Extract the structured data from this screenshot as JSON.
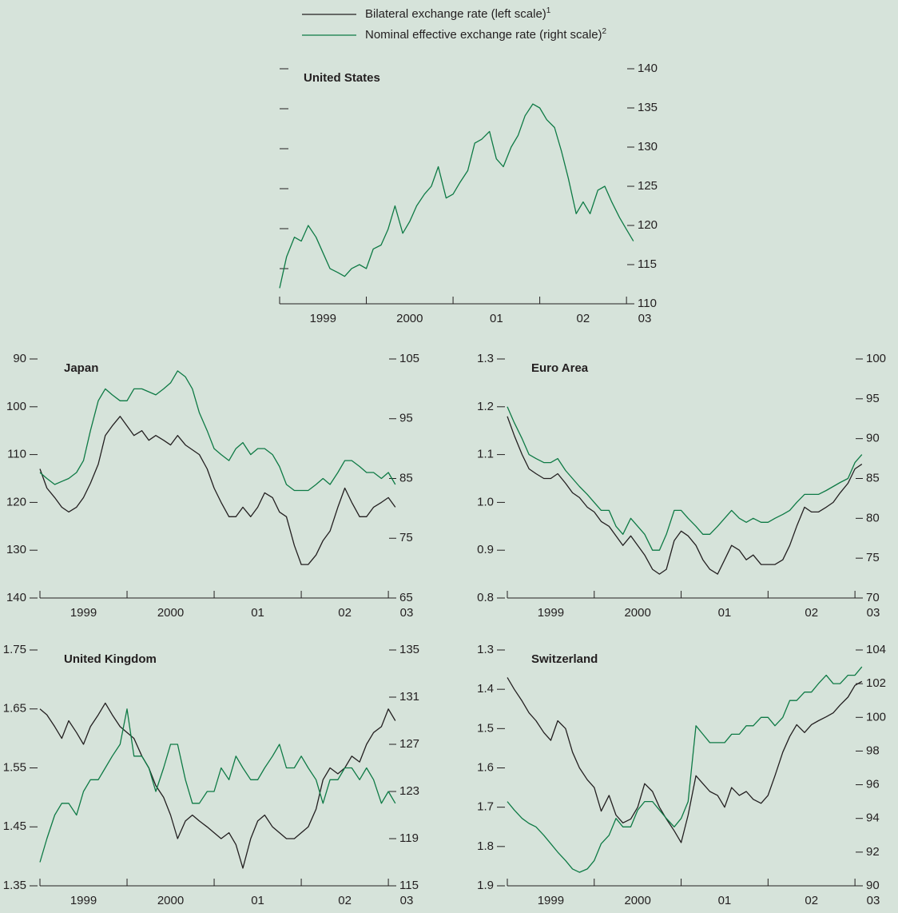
{
  "legend": [
    {
      "label": "Bilateral exchange rate (left scale)",
      "note": "1",
      "color": "#231f20"
    },
    {
      "label": "Nominal effective exchange rate (right scale)",
      "note": "2",
      "color": "#0e7a45"
    }
  ],
  "chart_data": [
    {
      "type": "line",
      "title": "United States",
      "x": [
        1999,
        1999.08,
        1999.17,
        1999.25,
        1999.33,
        1999.42,
        1999.5,
        1999.58,
        1999.67,
        1999.75,
        1999.83,
        1999.92,
        2000,
        2000.08,
        2000.17,
        2000.25,
        2000.33,
        2000.42,
        2000.5,
        2000.58,
        2000.67,
        2000.75,
        2000.83,
        2000.92,
        2001,
        2001.08,
        2001.17,
        2001.25,
        2001.33,
        2001.42,
        2001.5,
        2001.58,
        2001.67,
        2001.75,
        2001.83,
        2001.92,
        2002,
        2002.08,
        2002.17,
        2002.25,
        2002.33,
        2002.42,
        2002.5,
        2002.58,
        2002.67,
        2002.75,
        2002.83,
        2002.92,
        2003,
        2003.08
      ],
      "xlim": [
        1999,
        2003.1
      ],
      "xticks": [
        {
          "value": 1999,
          "label": "1999"
        },
        {
          "value": 2000,
          "label": "2000"
        },
        {
          "value": 2001,
          "label": "01"
        },
        {
          "value": 2002,
          "label": "02"
        },
        {
          "value": 2003,
          "label": "03"
        }
      ],
      "y2lim": [
        110,
        140
      ],
      "y2ticks": [
        110,
        115,
        120,
        125,
        130,
        135,
        140
      ],
      "series": [
        {
          "color": "#0e7a45",
          "axis": "y2",
          "values": [
            112,
            116,
            118.5,
            118,
            120,
            118.5,
            116.5,
            114.5,
            114,
            113.5,
            114.5,
            115,
            114.5,
            117,
            117.5,
            119.5,
            122.5,
            119,
            120.5,
            122.5,
            124,
            125,
            127.5,
            123.5,
            124,
            125.5,
            127,
            130.5,
            131,
            132,
            128.5,
            127.5,
            130,
            131.5,
            134,
            135.5,
            135,
            133.5,
            132.5,
            129.5,
            126,
            121.5,
            123,
            121.5,
            124.5,
            125,
            123,
            121,
            119.5,
            118
          ]
        }
      ]
    },
    {
      "type": "line",
      "title": "Japan",
      "x": [
        1999,
        1999.08,
        1999.17,
        1999.25,
        1999.33,
        1999.42,
        1999.5,
        1999.58,
        1999.67,
        1999.75,
        1999.83,
        1999.92,
        2000,
        2000.08,
        2000.17,
        2000.25,
        2000.33,
        2000.42,
        2000.5,
        2000.58,
        2000.67,
        2000.75,
        2000.83,
        2000.92,
        2001,
        2001.08,
        2001.17,
        2001.25,
        2001.33,
        2001.42,
        2001.5,
        2001.58,
        2001.67,
        2001.75,
        2001.83,
        2001.92,
        2002,
        2002.08,
        2002.17,
        2002.25,
        2002.33,
        2002.42,
        2002.5,
        2002.58,
        2002.67,
        2002.75,
        2002.83,
        2002.92,
        2003,
        2003.08
      ],
      "xlim": [
        1999,
        2003.1
      ],
      "xticks": [
        {
          "value": 1999,
          "label": "1999"
        },
        {
          "value": 2000,
          "label": "2000"
        },
        {
          "value": 2001,
          "label": "01"
        },
        {
          "value": 2002,
          "label": "02"
        },
        {
          "value": 2003,
          "label": "03"
        }
      ],
      "ylim": [
        140,
        90
      ],
      "yticks": [
        90,
        100,
        110,
        120,
        130,
        140
      ],
      "y2lim": [
        65,
        105
      ],
      "y2ticks": [
        65,
        75,
        85,
        95,
        105
      ],
      "series": [
        {
          "color": "#231f20",
          "axis": "y",
          "values": [
            113,
            117,
            119,
            121,
            122,
            121,
            119,
            116,
            112,
            106,
            104,
            102,
            104,
            106,
            105,
            107,
            106,
            107,
            108,
            106,
            108,
            109,
            110,
            113,
            117,
            120,
            123,
            123,
            121,
            123,
            121,
            118,
            119,
            122,
            123,
            129,
            133,
            133,
            131,
            128,
            126,
            121,
            117,
            120,
            123,
            123,
            121,
            120,
            119,
            121
          ]
        },
        {
          "color": "#0e7a45",
          "axis": "y2",
          "values": [
            86,
            85,
            84,
            84.5,
            85,
            86,
            88,
            93,
            98,
            100,
            99,
            98,
            98,
            100,
            100,
            99.5,
            99,
            100,
            101,
            103,
            102,
            100,
            96,
            93,
            90,
            89,
            88,
            90,
            91,
            89,
            90,
            90,
            89,
            87,
            84,
            83,
            83,
            83,
            84,
            85,
            84,
            86,
            88,
            88,
            87,
            86,
            86,
            85,
            86,
            84
          ]
        }
      ]
    },
    {
      "type": "line",
      "title": "Euro Area",
      "x": [
        1999,
        1999.08,
        1999.17,
        1999.25,
        1999.33,
        1999.42,
        1999.5,
        1999.58,
        1999.67,
        1999.75,
        1999.83,
        1999.92,
        2000,
        2000.08,
        2000.17,
        2000.25,
        2000.33,
        2000.42,
        2000.5,
        2000.58,
        2000.67,
        2000.75,
        2000.83,
        2000.92,
        2001,
        2001.08,
        2001.17,
        2001.25,
        2001.33,
        2001.42,
        2001.5,
        2001.58,
        2001.67,
        2001.75,
        2001.83,
        2001.92,
        2002,
        2002.08,
        2002.17,
        2002.25,
        2002.33,
        2002.42,
        2002.5,
        2002.58,
        2002.67,
        2002.75,
        2002.83,
        2002.92,
        2003,
        2003.08
      ],
      "xlim": [
        1999,
        2003.1
      ],
      "xticks": [
        {
          "value": 1999,
          "label": "1999"
        },
        {
          "value": 2000,
          "label": "2000"
        },
        {
          "value": 2001,
          "label": "01"
        },
        {
          "value": 2002,
          "label": "02"
        },
        {
          "value": 2003,
          "label": "03"
        }
      ],
      "ylim": [
        0.8,
        1.3
      ],
      "yticks": [
        {
          "value": 0.8,
          "label": "0.8"
        },
        {
          "value": 0.9,
          "label": "0.9"
        },
        {
          "value": 1,
          "label": "1.0"
        },
        {
          "value": 1.1,
          "label": "1.1"
        },
        {
          "value": 1.2,
          "label": "1.2"
        },
        {
          "value": 1.3,
          "label": "1.3"
        }
      ],
      "y2lim": [
        70,
        100
      ],
      "y2ticks": [
        70,
        75,
        80,
        85,
        90,
        95,
        100
      ],
      "series": [
        {
          "color": "#231f20",
          "axis": "y",
          "values": [
            1.18,
            1.14,
            1.1,
            1.07,
            1.06,
            1.05,
            1.05,
            1.06,
            1.04,
            1.02,
            1.01,
            0.99,
            0.98,
            0.96,
            0.95,
            0.93,
            0.91,
            0.93,
            0.91,
            0.89,
            0.86,
            0.85,
            0.86,
            0.92,
            0.94,
            0.93,
            0.91,
            0.88,
            0.86,
            0.85,
            0.88,
            0.91,
            0.9,
            0.88,
            0.89,
            0.87,
            0.87,
            0.87,
            0.88,
            0.91,
            0.95,
            0.99,
            0.98,
            0.98,
            0.99,
            1.0,
            1.02,
            1.04,
            1.07,
            1.08
          ]
        },
        {
          "color": "#0e7a45",
          "axis": "y2",
          "values": [
            94,
            92,
            90,
            88,
            87.5,
            87,
            87,
            87.5,
            86,
            85,
            84,
            83,
            82,
            81,
            81,
            79,
            78,
            80,
            79,
            78,
            76,
            76,
            78,
            81,
            81,
            80,
            79,
            78,
            78,
            79,
            80,
            81,
            80,
            79.5,
            80,
            79.5,
            79.5,
            80,
            80.5,
            81,
            82,
            83,
            83,
            83,
            83.5,
            84,
            84.5,
            85,
            87,
            88
          ]
        }
      ]
    },
    {
      "type": "line",
      "title": "United Kingdom",
      "x": [
        1999,
        1999.08,
        1999.17,
        1999.25,
        1999.33,
        1999.42,
        1999.5,
        1999.58,
        1999.67,
        1999.75,
        1999.83,
        1999.92,
        2000,
        2000.08,
        2000.17,
        2000.25,
        2000.33,
        2000.42,
        2000.5,
        2000.58,
        2000.67,
        2000.75,
        2000.83,
        2000.92,
        2001,
        2001.08,
        2001.17,
        2001.25,
        2001.33,
        2001.42,
        2001.5,
        2001.58,
        2001.67,
        2001.75,
        2001.83,
        2001.92,
        2002,
        2002.08,
        2002.17,
        2002.25,
        2002.33,
        2002.42,
        2002.5,
        2002.58,
        2002.67,
        2002.75,
        2002.83,
        2002.92,
        2003,
        2003.08
      ],
      "xlim": [
        1999,
        2003.1
      ],
      "xticks": [
        {
          "value": 1999,
          "label": "1999"
        },
        {
          "value": 2000,
          "label": "2000"
        },
        {
          "value": 2001,
          "label": "01"
        },
        {
          "value": 2002,
          "label": "02"
        },
        {
          "value": 2003,
          "label": "03"
        }
      ],
      "ylim": [
        1.35,
        1.75
      ],
      "yticks": [
        1.35,
        1.45,
        1.55,
        1.65,
        1.75
      ],
      "y2lim": [
        115,
        135
      ],
      "y2ticks": [
        115,
        119,
        123,
        127,
        131,
        135
      ],
      "series": [
        {
          "color": "#231f20",
          "axis": "y",
          "values": [
            1.65,
            1.64,
            1.62,
            1.6,
            1.63,
            1.61,
            1.59,
            1.62,
            1.64,
            1.66,
            1.64,
            1.62,
            1.61,
            1.6,
            1.57,
            1.55,
            1.52,
            1.5,
            1.47,
            1.43,
            1.46,
            1.47,
            1.46,
            1.45,
            1.44,
            1.43,
            1.44,
            1.42,
            1.38,
            1.43,
            1.46,
            1.47,
            1.45,
            1.44,
            1.43,
            1.43,
            1.44,
            1.45,
            1.48,
            1.53,
            1.55,
            1.54,
            1.55,
            1.57,
            1.56,
            1.59,
            1.61,
            1.62,
            1.65,
            1.63
          ]
        },
        {
          "color": "#0e7a45",
          "axis": "y2",
          "values": [
            117,
            119,
            121,
            122,
            122,
            121,
            123,
            124,
            124,
            125,
            126,
            127,
            130,
            126,
            126,
            125,
            123,
            125,
            127,
            127,
            124,
            122,
            122,
            123,
            123,
            125,
            124,
            126,
            125,
            124,
            124,
            125,
            126,
            127,
            125,
            125,
            126,
            125,
            124,
            122,
            124,
            124,
            125,
            125,
            124,
            125,
            124,
            122,
            123,
            122
          ]
        }
      ]
    },
    {
      "type": "line",
      "title": "Switzerland",
      "x": [
        1999,
        1999.08,
        1999.17,
        1999.25,
        1999.33,
        1999.42,
        1999.5,
        1999.58,
        1999.67,
        1999.75,
        1999.83,
        1999.92,
        2000,
        2000.08,
        2000.17,
        2000.25,
        2000.33,
        2000.42,
        2000.5,
        2000.58,
        2000.67,
        2000.75,
        2000.83,
        2000.92,
        2001,
        2001.08,
        2001.17,
        2001.25,
        2001.33,
        2001.42,
        2001.5,
        2001.58,
        2001.67,
        2001.75,
        2001.83,
        2001.92,
        2002,
        2002.08,
        2002.17,
        2002.25,
        2002.33,
        2002.42,
        2002.5,
        2002.58,
        2002.67,
        2002.75,
        2002.83,
        2002.92,
        2003,
        2003.08
      ],
      "xlim": [
        1999,
        2003.1
      ],
      "xticks": [
        {
          "value": 1999,
          "label": "1999"
        },
        {
          "value": 2000,
          "label": "2000"
        },
        {
          "value": 2001,
          "label": "01"
        },
        {
          "value": 2002,
          "label": "02"
        },
        {
          "value": 2003,
          "label": "03"
        }
      ],
      "ylim": [
        1.9,
        1.3
      ],
      "yticks": [
        1.3,
        1.4,
        1.5,
        1.6,
        1.7,
        1.8,
        1.9
      ],
      "y2lim": [
        90,
        104
      ],
      "y2ticks": [
        90,
        92,
        94,
        96,
        98,
        100,
        102,
        104
      ],
      "series": [
        {
          "color": "#231f20",
          "axis": "y",
          "values": [
            1.37,
            1.4,
            1.43,
            1.46,
            1.48,
            1.51,
            1.53,
            1.48,
            1.5,
            1.56,
            1.6,
            1.63,
            1.65,
            1.71,
            1.67,
            1.72,
            1.74,
            1.73,
            1.7,
            1.64,
            1.66,
            1.7,
            1.73,
            1.76,
            1.79,
            1.72,
            1.62,
            1.64,
            1.66,
            1.67,
            1.7,
            1.65,
            1.67,
            1.66,
            1.68,
            1.69,
            1.67,
            1.62,
            1.56,
            1.52,
            1.49,
            1.51,
            1.49,
            1.48,
            1.47,
            1.46,
            1.44,
            1.42,
            1.39,
            1.38
          ]
        },
        {
          "color": "#0e7a45",
          "axis": "y2",
          "values": [
            95,
            94.5,
            94,
            93.7,
            93.5,
            93,
            92.5,
            92,
            91.5,
            91,
            90.8,
            91,
            91.5,
            92.5,
            93,
            94,
            93.5,
            93.5,
            94.5,
            95,
            95,
            94.5,
            94,
            93.5,
            94,
            95,
            99.5,
            99,
            98.5,
            98.5,
            98.5,
            99,
            99,
            99.5,
            99.5,
            100,
            100,
            99.5,
            100,
            101,
            101,
            101.5,
            101.5,
            102,
            102.5,
            102,
            102,
            102.5,
            102.5,
            103
          ]
        }
      ]
    }
  ]
}
